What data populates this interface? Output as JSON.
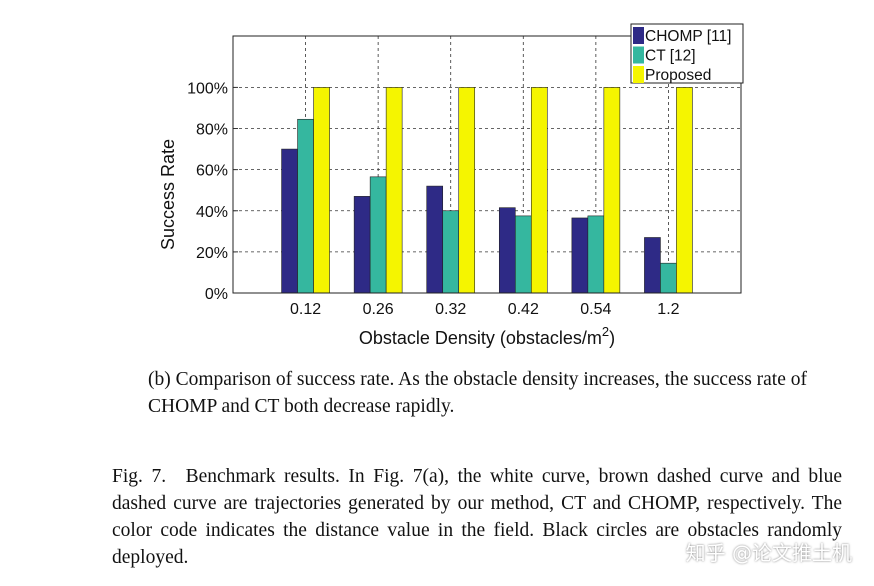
{
  "chart_data": {
    "type": "bar",
    "categories": [
      "0.12",
      "0.26",
      "0.32",
      "0.42",
      "0.54",
      "1.2"
    ],
    "series": [
      {
        "name": "CHOMP [11]",
        "color": "#2e2a86",
        "values": [
          70,
          47,
          52,
          41.5,
          36.5,
          27
        ]
      },
      {
        "name": "CT [12]",
        "color": "#35b79f",
        "values": [
          84.5,
          56.5,
          40,
          37.5,
          37.5,
          14.5
        ]
      },
      {
        "name": "Proposed",
        "color": "#f5f500",
        "values": [
          100,
          100,
          100,
          100,
          100,
          100
        ]
      }
    ],
    "xlabel": "Obstacle Density (obstacles/m",
    "xlabel_sup": "2",
    "xlabel_end": ")",
    "ylabel": "Success Rate",
    "yticks": [
      "0%",
      "20%",
      "40%",
      "60%",
      "80%",
      "100%"
    ],
    "ylim": [
      0,
      125
    ],
    "grid": true,
    "legend": "top-right"
  },
  "subcaption": "(b) Comparison of success rate. As the obstacle density increases, the success rate of CHOMP and CT both decrease rapidly.",
  "figure_caption": "Fig. 7. Benchmark results. In Fig. 7(a), the white curve, brown dashed curve and blue dashed curve are trajectories generated by our method, CT and CHOMP, respectively. The color code indicates the distance value in the field. Black circles are obstacles randomly deployed.",
  "watermark": "知乎 @论文推土机"
}
